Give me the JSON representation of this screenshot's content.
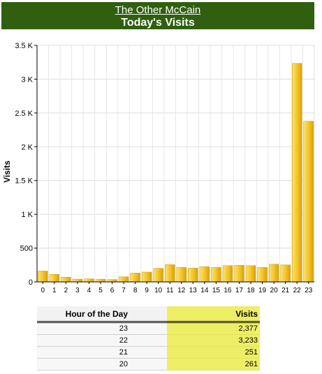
{
  "header": {
    "site_name": "The Other McCain",
    "title": "Today's Visits"
  },
  "colors": {
    "header_bg": "#2f5f0f",
    "bar_light": "#ffe36a",
    "bar_dark": "#d9a300",
    "visits_column_bg": "#eeee66"
  },
  "chart_data": {
    "type": "bar",
    "title": "Today's Visits",
    "xlabel": "",
    "ylabel": "Visits",
    "ylim": [
      0,
      3500
    ],
    "yticks": [
      "0",
      "500",
      "1 K",
      "1.5 K",
      "2 K",
      "2.5 K",
      "3 K",
      "3.5 K"
    ],
    "grid": true,
    "categories": [
      "0",
      "1",
      "2",
      "3",
      "4",
      "5",
      "6",
      "7",
      "8",
      "9",
      "10",
      "11",
      "12",
      "13",
      "14",
      "15",
      "16",
      "17",
      "18",
      "19",
      "20",
      "21",
      "22",
      "23"
    ],
    "values": [
      160,
      110,
      70,
      40,
      45,
      40,
      35,
      75,
      130,
      145,
      200,
      255,
      215,
      205,
      225,
      215,
      240,
      245,
      240,
      215,
      261,
      251,
      3233,
      2377
    ]
  },
  "table": {
    "headers": {
      "hour": "Hour of the Day",
      "visits": "Visits"
    },
    "rows": [
      {
        "hour": "23",
        "visits": "2,377"
      },
      {
        "hour": "22",
        "visits": "3,233"
      },
      {
        "hour": "21",
        "visits": "251"
      },
      {
        "hour": "20",
        "visits": "261"
      }
    ]
  }
}
